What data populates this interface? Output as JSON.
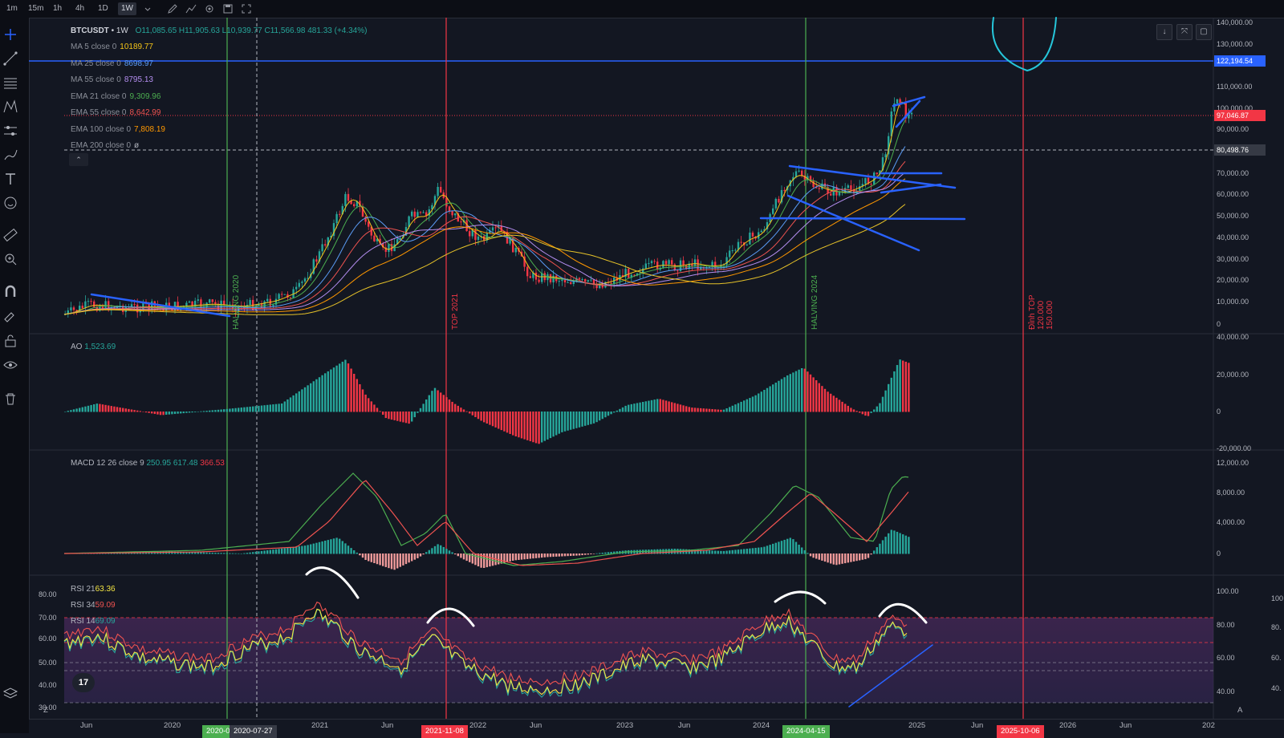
{
  "toolbar": {
    "timeframes": [
      "1m",
      "15m",
      "1h",
      "4h",
      "1D",
      "1W"
    ],
    "active_timeframe": "1W"
  },
  "legend": {
    "symbol": "BTCUSDT",
    "interval": "1W",
    "ohlc": "O11,085.65  H11,905.63  L10,939.77  C11,566.98  481.33 (+4.34%)",
    "ma": [
      {
        "name": "MA 5 close 0",
        "value": "10189.77",
        "color": "#f5c518"
      },
      {
        "name": "MA 25 close 0",
        "value": "8698.97",
        "color": "#5b9cf6"
      },
      {
        "name": "MA 55 close 0",
        "value": "8795.13",
        "color": "#b48ef0"
      },
      {
        "name": "EMA 21 close 0",
        "value": "9,309.96",
        "color": "#4caf50"
      },
      {
        "name": "EMA 55 close 0",
        "value": "8,642.99",
        "color": "#ef5350"
      },
      {
        "name": "EMA 100 close 0",
        "value": "7,808.19",
        "color": "#ff9800"
      },
      {
        "name": "EMA 200 close 0",
        "value": "ø",
        "color": "#b2b5be"
      }
    ],
    "ao": {
      "name": "AO",
      "value": "1,523.69"
    },
    "macd": {
      "name": "MACD 12 26 close 9",
      "v1": "250.95",
      "v2": "617.48",
      "v3": "366.53"
    },
    "rsi": [
      {
        "name": "RSI 21",
        "value": "63.36",
        "color": "#f5e642"
      },
      {
        "name": "RSI 34",
        "value": "59.09",
        "color": "#ef5350"
      },
      {
        "name": "RSI 14",
        "value": "69.09",
        "color": "#26a69a"
      }
    ]
  },
  "price_axis": [
    "140,000.00",
    "130,000.00",
    "110,000.00",
    "100,000.00",
    "90,000.00",
    "70,000.00",
    "60,000.00",
    "50,000.00",
    "40,000.00",
    "30,000.00",
    "20,000.00",
    "10,000.00",
    "0"
  ],
  "price_tags": [
    {
      "value": "122,194.54",
      "color": "#2962ff"
    },
    {
      "value": "97,046.87",
      "color": "#f23645"
    },
    {
      "value": "80,498.76",
      "color": "#363a45"
    }
  ],
  "ao_axis": [
    "40,000.00",
    "20,000.00",
    "0",
    "-20,000.00"
  ],
  "macd_axis": [
    "12,000.00",
    "8,000.00",
    "4,000.00",
    "0"
  ],
  "rsi_axis_left": [
    "80.00",
    "70.00",
    "60.00",
    "50.00",
    "40.00",
    "30.00"
  ],
  "rsi_axis_right": [
    "100.00",
    "80.00",
    "60.00",
    "40.00"
  ],
  "rsi_axis_far": [
    "100",
    "80.",
    "60.",
    "40."
  ],
  "vlines": [
    {
      "label": "HALVING 2020",
      "color": "#4caf50"
    },
    {
      "label": "TOP 2021",
      "color": "#f23645"
    },
    {
      "label": "HALVING 2024",
      "color": "#4caf50"
    },
    {
      "label": "Đỉnh TOP",
      "sub1": "120.000",
      "sub2": "150.000",
      "color": "#f23645"
    }
  ],
  "x_axis": [
    "Jun",
    "2020",
    "2021",
    "Jun",
    "2022",
    "Jun",
    "2023",
    "Jun",
    "2024",
    "2025",
    "Jun",
    "2026",
    "Jun",
    "202"
  ],
  "x_tags": [
    {
      "value": "2020-0",
      "color": "#4caf50"
    },
    {
      "value": "2020-07-27",
      "color": "#363a45"
    },
    {
      "value": "2021-11-08",
      "color": "#f23645"
    },
    {
      "value": "2024-04-15",
      "color": "#4caf50"
    },
    {
      "value": "2025-10-06",
      "color": "#f23645"
    }
  ],
  "misc": {
    "collapse_glyph": "⌃",
    "tv_logo": "17",
    "z_label": "Z",
    "a_label": "A"
  }
}
